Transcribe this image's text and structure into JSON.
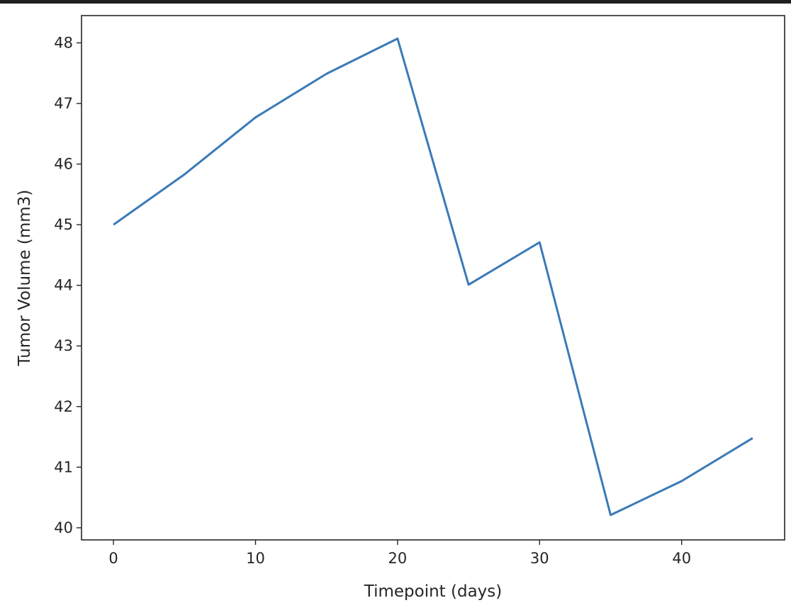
{
  "chart_data": {
    "type": "line",
    "title": "",
    "xlabel": "Timepoint (days)",
    "ylabel": "Tumor Volume (mm3)",
    "xlim": [
      -2.25,
      47.25
    ],
    "ylim": [
      39.8,
      48.45
    ],
    "xticks": [
      0,
      10,
      20,
      30,
      40
    ],
    "yticks": [
      40,
      41,
      42,
      43,
      44,
      45,
      46,
      47,
      48
    ],
    "grid": false,
    "series": [
      {
        "color": "#3a7ab8",
        "x": [
          0,
          5,
          10,
          15,
          20,
          25,
          30,
          35,
          40,
          45
        ],
        "y": [
          45.0,
          45.83,
          46.77,
          47.49,
          48.07,
          44.01,
          44.71,
          40.21,
          40.77,
          41.48
        ]
      }
    ]
  }
}
